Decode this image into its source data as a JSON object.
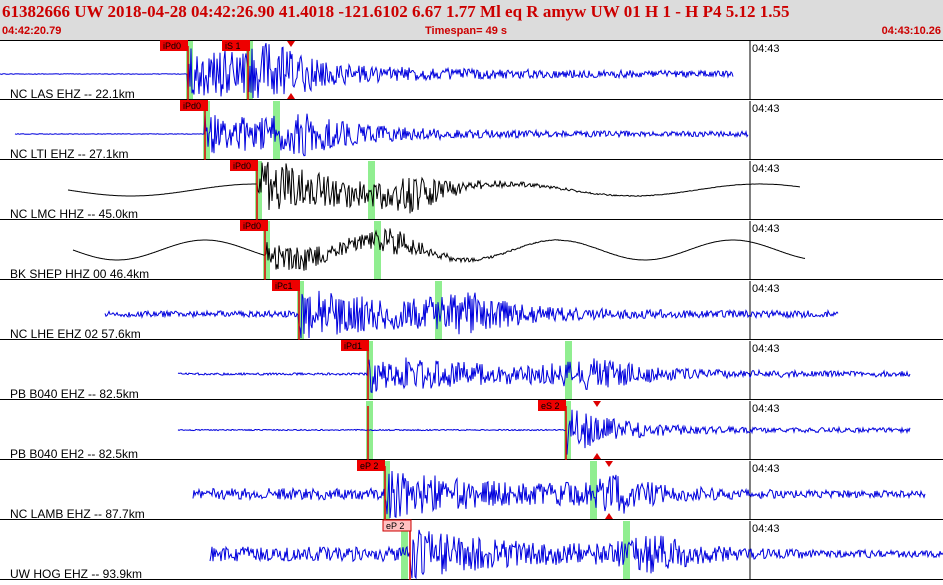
{
  "header": {
    "event_line": "61382666 UW 2018-04-28 04:42:26.90   41.4018 -121.6102   6.67  1.77 Ml  eq  R amyw    UW 01  H  1  -  H P4    5.12  1.55",
    "start_time": "04:42:20.79",
    "timespan": "Timespan=  49 s",
    "end_time": "04:43:10.26"
  },
  "colors": {
    "header_text": "#cc0000",
    "trace_blue": "#0000dd",
    "trace_black": "#000000",
    "pick_green": "#90ee90",
    "phase_red": "#dd0000"
  },
  "traces": [
    {
      "label": "NC LAS EHZ -- 22.1km",
      "time_label": "04:43",
      "color": "blue",
      "picks": [
        {
          "label": "iPd0"
        },
        {
          "label": "iS 1"
        }
      ]
    },
    {
      "label": "NC LTI EHZ -- 27.1km",
      "time_label": "04:43",
      "color": "blue",
      "picks": [
        {
          "label": "iPd0"
        }
      ]
    },
    {
      "label": "NC LMC HHZ -- 45.0km",
      "time_label": "04:43",
      "color": "black",
      "picks": [
        {
          "label": "iPd0"
        }
      ]
    },
    {
      "label": "BK SHEP HHZ 00 46.4km",
      "time_label": "04:43",
      "color": "black",
      "picks": [
        {
          "label": "iPd0"
        }
      ]
    },
    {
      "label": "NC LHE EHZ 02 57.6km",
      "time_label": "04:43",
      "color": "blue",
      "picks": [
        {
          "label": "iPc1"
        }
      ]
    },
    {
      "label": "PB B040 EHZ -- 82.5km",
      "time_label": "04:43",
      "color": "blue",
      "picks": [
        {
          "label": "iPd1"
        }
      ]
    },
    {
      "label": "PB B040 EH2 -- 82.5km",
      "time_label": "04:43",
      "color": "blue",
      "picks": [
        {
          "label": "eS 2"
        }
      ]
    },
    {
      "label": "NC LAMB EHZ -- 87.7km",
      "time_label": "04:43",
      "color": "blue",
      "picks": [
        {
          "label": "eP 2"
        }
      ]
    },
    {
      "label": "UW HOG EHZ -- 93.9km",
      "time_label": "04:43",
      "color": "blue",
      "picks": [
        {
          "label": "eP 2"
        }
      ]
    }
  ]
}
